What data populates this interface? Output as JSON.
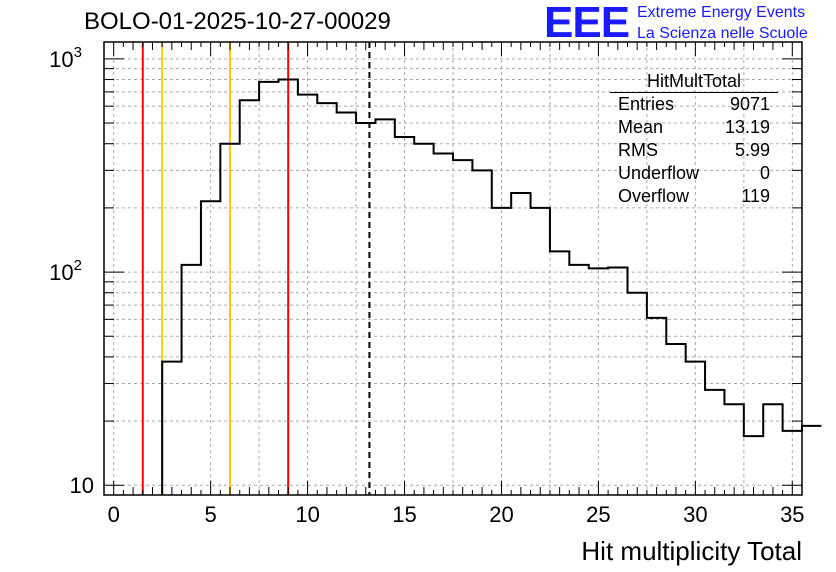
{
  "plot_title": "BOLO-01-2025-10-27-00029",
  "logo": {
    "mark": "EEE",
    "line1": "Extreme Energy Events",
    "line2": "La Scienza nelle Scuole"
  },
  "stats_box": {
    "title": "HitMultTotal",
    "rows": [
      {
        "label": "Entries",
        "value": "9071"
      },
      {
        "label": "Mean",
        "value": "13.19"
      },
      {
        "label": "RMS",
        "value": "5.99"
      },
      {
        "label": "Underflow",
        "value": "0"
      },
      {
        "label": "Overflow",
        "value": "119"
      }
    ]
  },
  "colors": {
    "red": "#ff0000",
    "yellow": "#ffcc00",
    "hist": "#000000",
    "grid": "#aaaaaa"
  },
  "chart_data": {
    "type": "bar",
    "histogram": true,
    "xlabel": "Hit multiplicity Total",
    "ylabel": "",
    "xlim": [
      -0.5,
      35.5
    ],
    "ylim": [
      9,
      1200
    ],
    "yscale": "log",
    "bin_width": 1,
    "bin_edges_start": 2.5,
    "values": [
      38,
      108,
      215,
      400,
      640,
      780,
      800,
      680,
      620,
      560,
      500,
      520,
      430,
      400,
      360,
      335,
      300,
      200,
      235,
      200,
      125,
      108,
      104,
      105,
      80,
      61,
      46,
      38,
      28,
      24,
      17,
      24,
      18,
      19
    ],
    "x_ticks": [
      "0",
      "5",
      "10",
      "15",
      "20",
      "25",
      "30",
      "35"
    ],
    "x_tick_values": [
      0,
      5,
      10,
      15,
      20,
      25,
      30,
      35
    ],
    "y_ticks": [
      {
        "value": 10,
        "base": "10",
        "exp": ""
      },
      {
        "value": 100,
        "base": "10",
        "exp": "2"
      },
      {
        "value": 1000,
        "base": "10",
        "exp": "3"
      }
    ],
    "vertical_lines": [
      {
        "x": 1.5,
        "color": "#ff0000",
        "style": "solid"
      },
      {
        "x": 2.5,
        "color": "#ffcc00",
        "style": "solid"
      },
      {
        "x": 6.0,
        "color": "#ffcc00",
        "style": "solid"
      },
      {
        "x": 9.0,
        "color": "#ff0000",
        "style": "solid"
      },
      {
        "x": 13.19,
        "color": "#000000",
        "style": "dashed"
      }
    ],
    "grid": true
  }
}
